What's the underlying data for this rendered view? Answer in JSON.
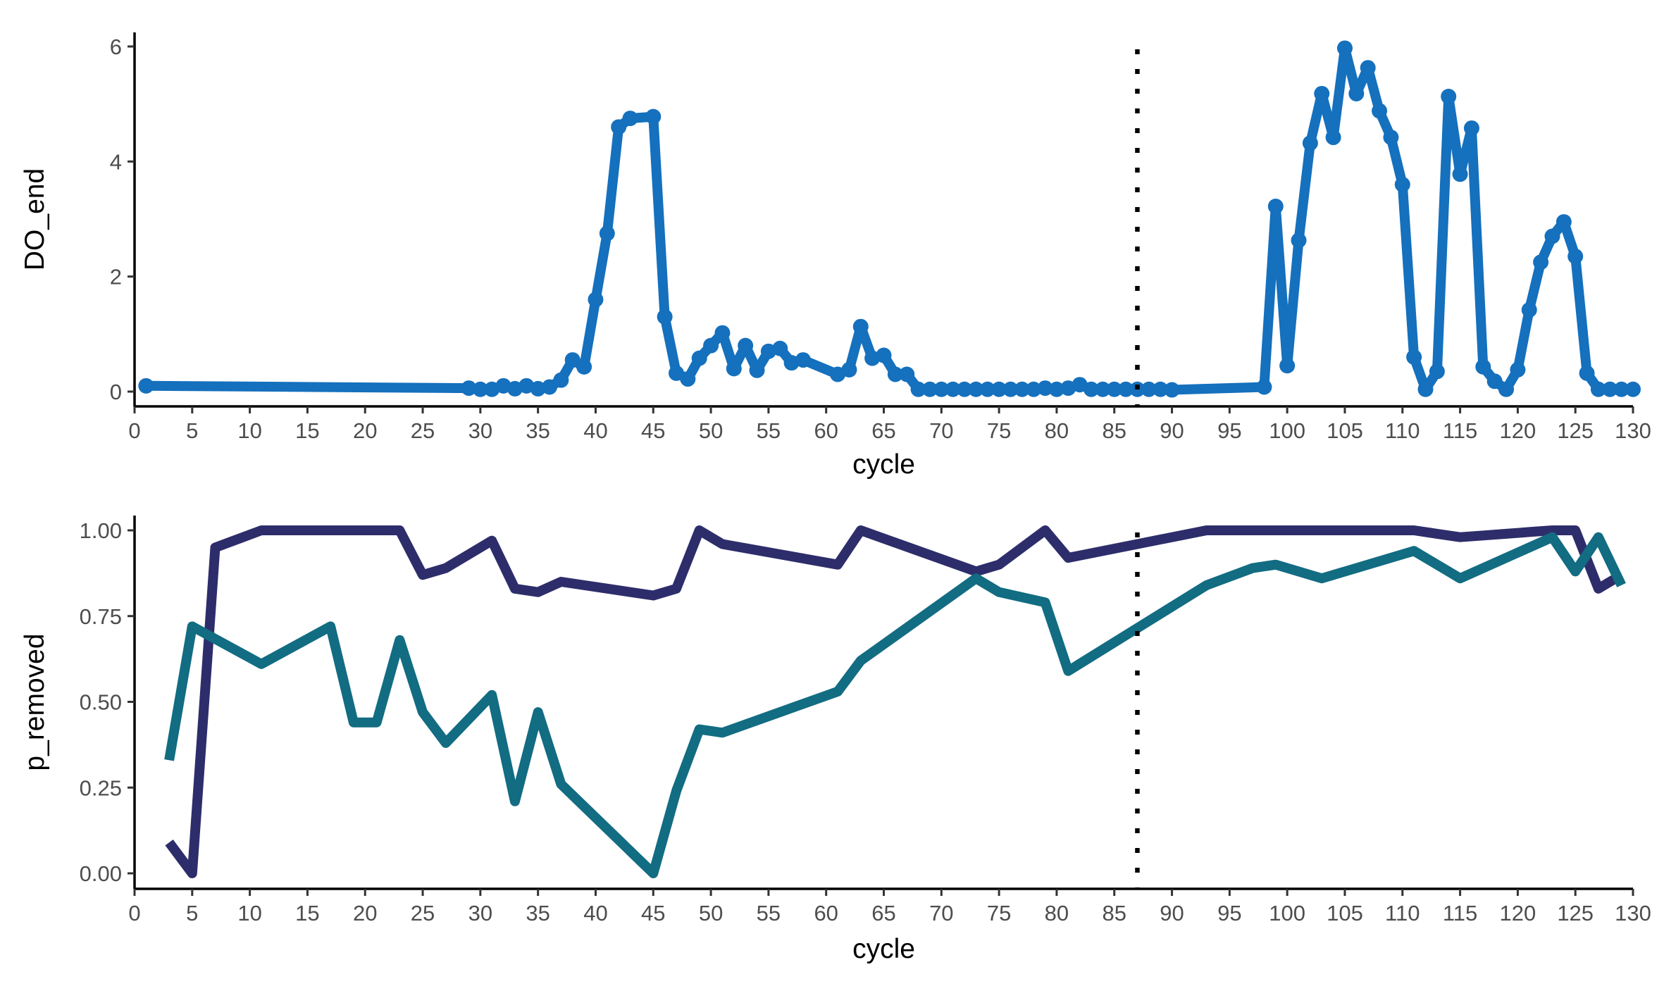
{
  "chart_data": [
    {
      "type": "line",
      "xlabel": "cycle",
      "ylabel": "DO_end",
      "xlim": [
        0,
        130
      ],
      "ylim": [
        0,
        6
      ],
      "x_ticks": [
        0,
        5,
        10,
        15,
        20,
        25,
        30,
        35,
        40,
        45,
        50,
        55,
        60,
        65,
        70,
        75,
        80,
        85,
        90,
        95,
        100,
        105,
        110,
        115,
        120,
        125,
        130
      ],
      "y_ticks": [
        0,
        2,
        4,
        6
      ],
      "markers": true,
      "vline_x": 87,
      "series": [
        {
          "color": "#1570bd",
          "x": [
            1,
            29,
            30,
            31,
            32,
            33,
            34,
            35,
            36,
            37,
            38,
            39,
            40,
            41,
            42,
            43,
            45,
            46,
            47,
            48,
            49,
            50,
            51,
            52,
            53,
            54,
            55,
            56,
            57,
            58,
            61,
            62,
            63,
            64,
            65,
            66,
            67,
            68,
            69,
            70,
            71,
            72,
            73,
            74,
            75,
            76,
            77,
            78,
            79,
            80,
            81,
            82,
            83,
            84,
            85,
            86,
            87,
            88,
            89,
            90,
            98,
            99,
            100,
            101,
            102,
            103,
            104,
            105,
            106,
            107,
            108,
            109,
            110,
            111,
            112,
            113,
            114,
            115,
            116,
            117,
            118,
            119,
            120,
            121,
            122,
            123,
            124,
            125,
            126,
            127,
            128,
            129,
            130
          ],
          "y": [
            0.1,
            0.06,
            0.04,
            0.04,
            0.1,
            0.05,
            0.1,
            0.05,
            0.08,
            0.2,
            0.55,
            0.43,
            1.6,
            2.75,
            4.6,
            4.75,
            4.78,
            1.3,
            0.32,
            0.22,
            0.58,
            0.8,
            1.02,
            0.4,
            0.8,
            0.37,
            0.7,
            0.75,
            0.5,
            0.55,
            0.3,
            0.38,
            1.13,
            0.58,
            0.63,
            0.3,
            0.3,
            0.04,
            0.04,
            0.04,
            0.04,
            0.04,
            0.04,
            0.04,
            0.04,
            0.04,
            0.04,
            0.04,
            0.06,
            0.04,
            0.06,
            0.12,
            0.04,
            0.04,
            0.04,
            0.04,
            0.04,
            0.04,
            0.04,
            0.03,
            0.08,
            3.22,
            0.45,
            2.63,
            4.32,
            5.18,
            4.42,
            5.97,
            5.18,
            5.63,
            4.88,
            4.42,
            3.6,
            0.6,
            0.04,
            0.35,
            5.13,
            3.78,
            4.58,
            0.43,
            0.18,
            0.04,
            0.38,
            1.42,
            2.25,
            2.7,
            2.95,
            2.35,
            0.32,
            0.04,
            0.04,
            0.04,
            0.04
          ]
        }
      ]
    },
    {
      "type": "line",
      "xlabel": "cycle",
      "ylabel": "p_removed",
      "xlim": [
        0,
        130
      ],
      "ylim": [
        0,
        1
      ],
      "x_ticks": [
        0,
        5,
        10,
        15,
        20,
        25,
        30,
        35,
        40,
        45,
        50,
        55,
        60,
        65,
        70,
        75,
        80,
        85,
        90,
        95,
        100,
        105,
        110,
        115,
        120,
        125,
        130
      ],
      "y_ticks": [
        "0.00",
        "0.25",
        "0.50",
        "0.75",
        "1.00"
      ],
      "markers": false,
      "vline_x": 87,
      "series": [
        {
          "color": "#2e2d6b",
          "x": [
            3,
            5,
            7,
            11,
            13,
            15,
            17,
            19,
            21,
            23,
            25,
            27,
            29,
            31,
            33,
            35,
            37,
            45,
            47,
            49,
            51,
            61,
            63,
            73,
            75,
            79,
            81,
            93,
            95,
            97,
            101,
            103,
            105,
            107,
            109,
            111,
            113,
            115,
            117,
            119,
            121,
            123,
            125,
            127,
            129
          ],
          "y": [
            0.09,
            0.0,
            0.95,
            1.0,
            1.0,
            1.0,
            1.0,
            1.0,
            1.0,
            1.0,
            0.87,
            0.89,
            0.93,
            0.97,
            0.83,
            0.82,
            0.85,
            0.81,
            0.83,
            1.0,
            0.96,
            0.9,
            1.0,
            0.88,
            0.9,
            1.0,
            0.92,
            1.0,
            1.0,
            1.0,
            1.0,
            1.0,
            1.0,
            1.0,
            1.0,
            1.0,
            0.99,
            0.98,
            0.985,
            0.99,
            0.995,
            1.0,
            1.0,
            0.83,
            0.87
          ]
        },
        {
          "color": "#126c82",
          "x": [
            3,
            5,
            11,
            17,
            19,
            21,
            23,
            25,
            27,
            31,
            33,
            35,
            37,
            45,
            47,
            49,
            51,
            61,
            63,
            73,
            75,
            79,
            81,
            93,
            97,
            99,
            103,
            111,
            115,
            123,
            125,
            127,
            129
          ],
          "y": [
            0.33,
            0.72,
            0.61,
            0.72,
            0.44,
            0.44,
            0.68,
            0.47,
            0.38,
            0.52,
            0.21,
            0.47,
            0.26,
            0.0,
            0.24,
            0.42,
            0.41,
            0.53,
            0.62,
            0.86,
            0.82,
            0.79,
            0.59,
            0.84,
            0.89,
            0.9,
            0.86,
            0.94,
            0.86,
            0.98,
            0.88,
            0.98,
            0.84
          ]
        }
      ]
    }
  ]
}
